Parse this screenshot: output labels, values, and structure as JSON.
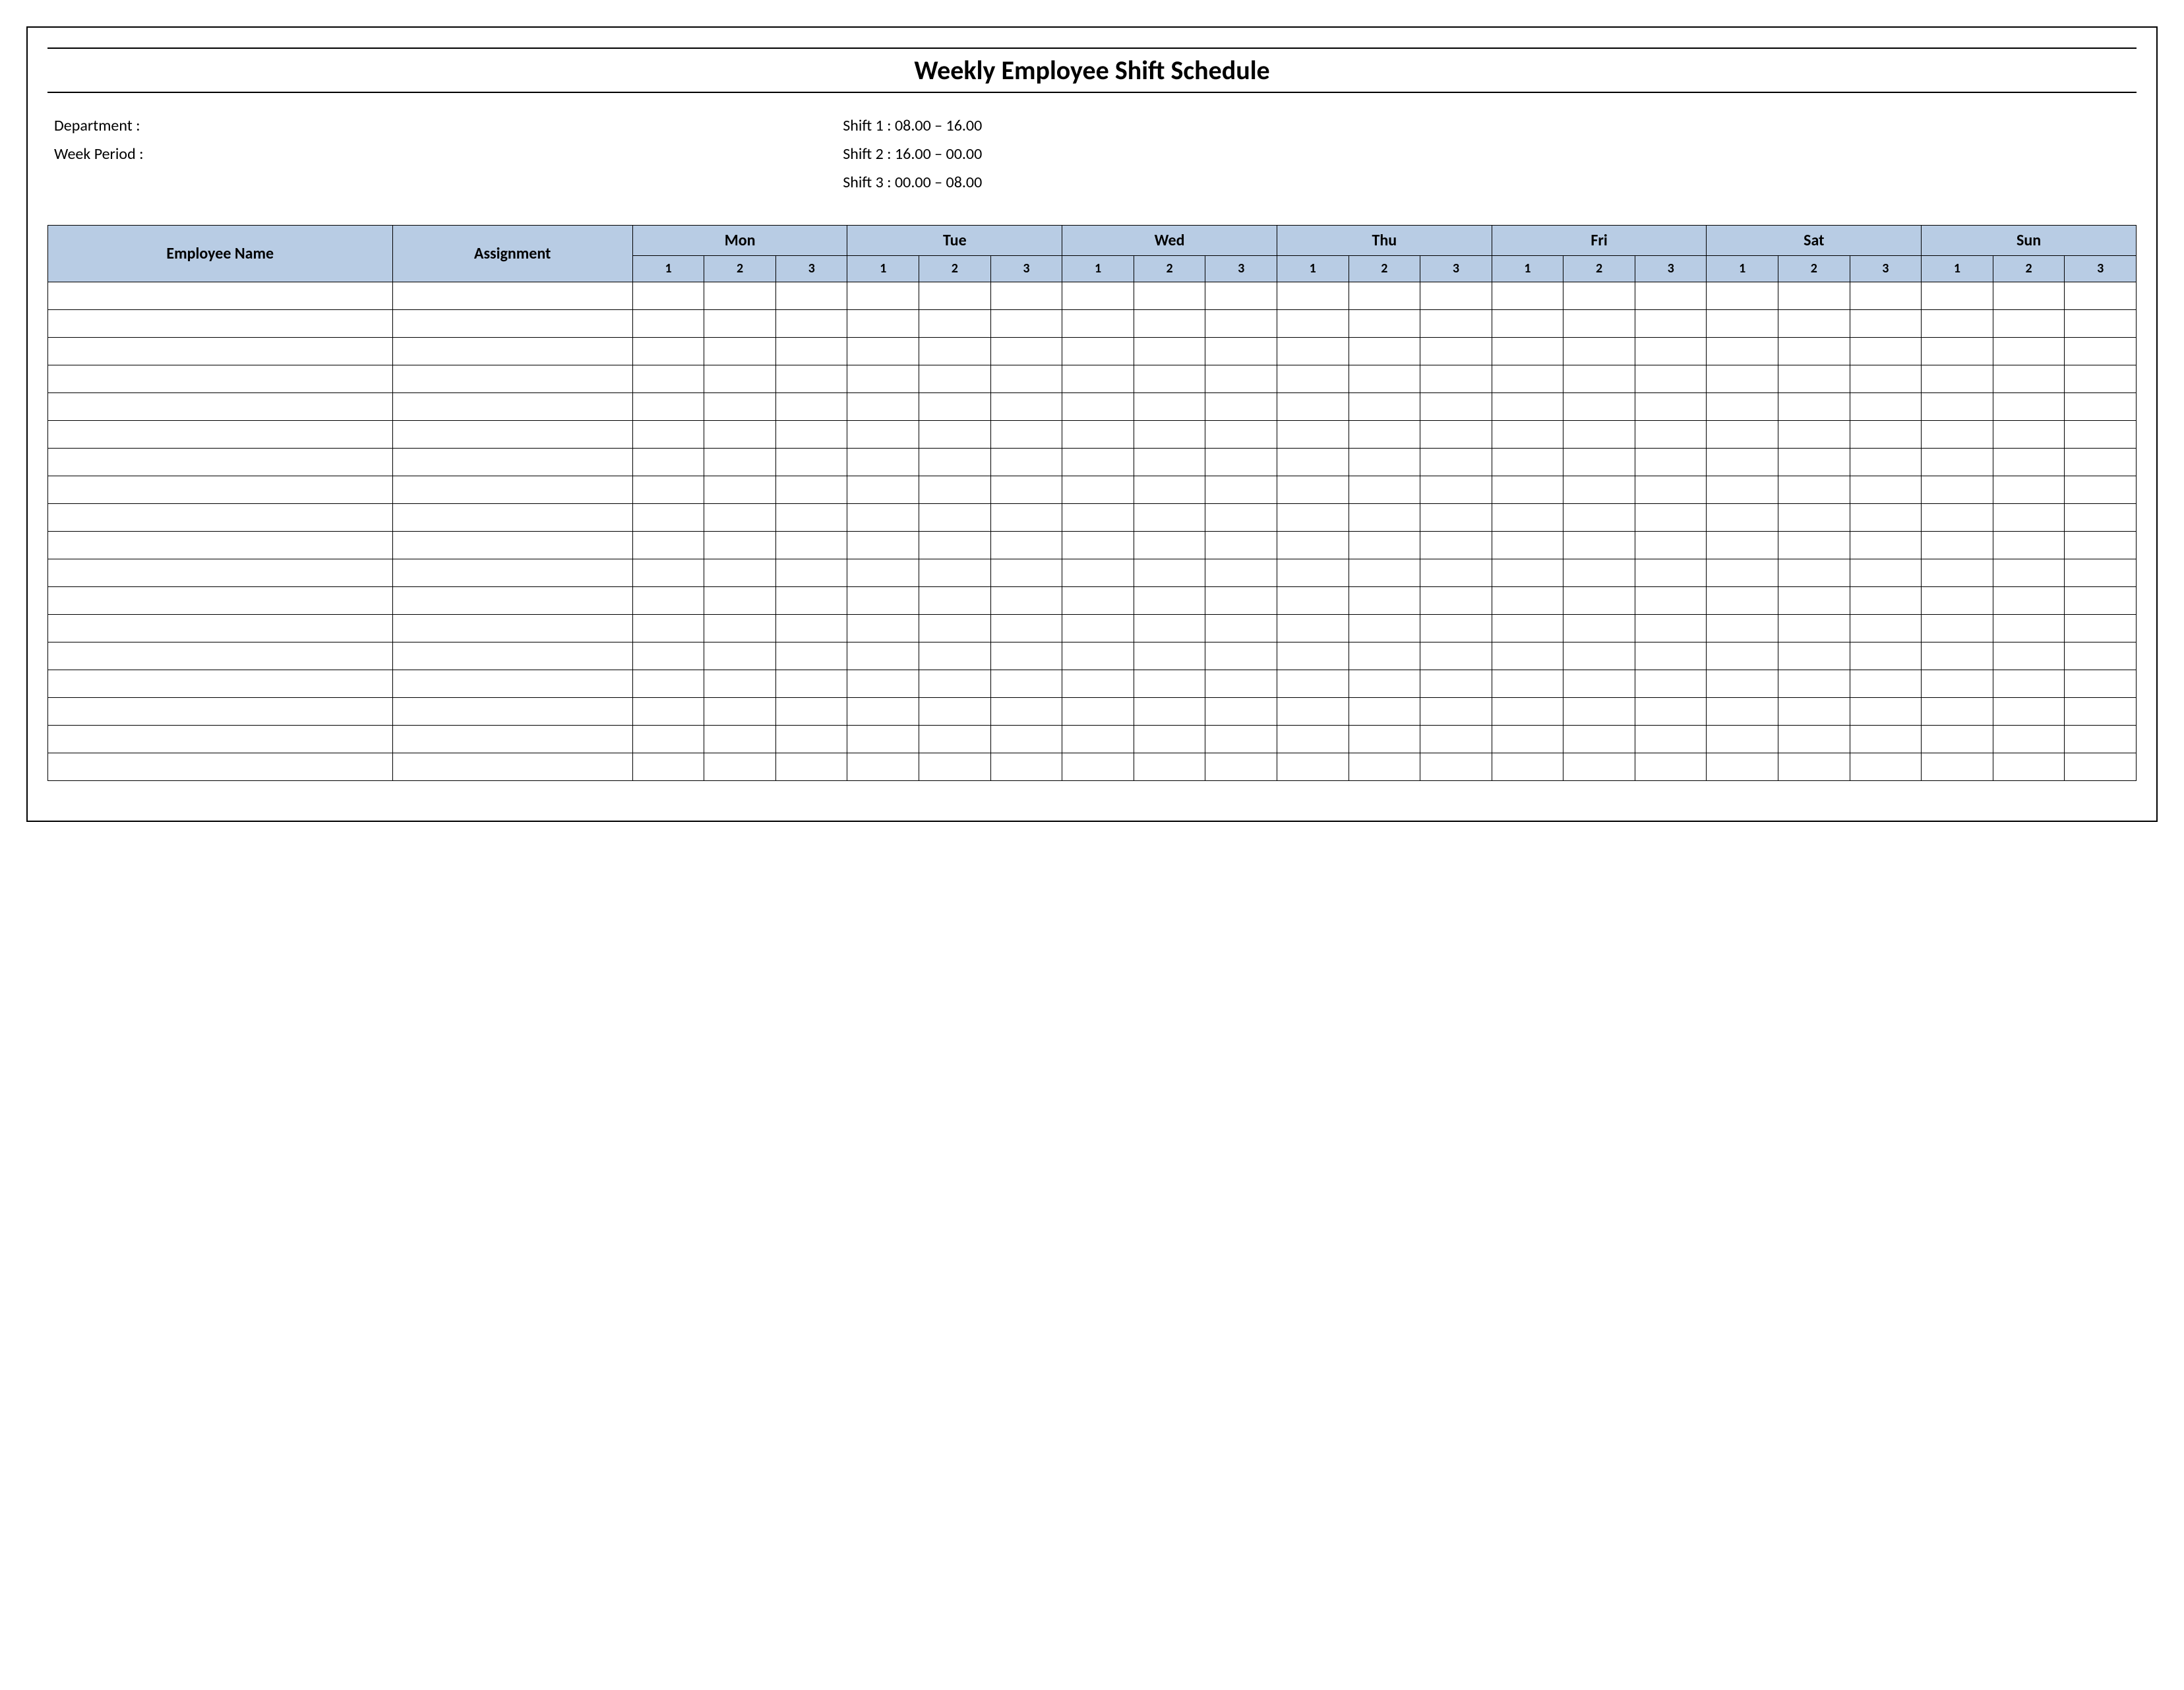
{
  "title": "Weekly Employee Shift Schedule",
  "info_left": {
    "department_label": "Department    :",
    "week_period_label": "Week  Period :"
  },
  "info_right": {
    "shift1": "Shift 1  : 08.00  – 16.00",
    "shift2": "Shift 2  : 16.00  – 00.00",
    "shift3": "Shift 3  : 00.00  – 08.00"
  },
  "headers": {
    "employee_name": "Employee Name",
    "assignment": "Assignment",
    "days": [
      "Mon",
      "Tue",
      "Wed",
      "Thu",
      "Fri",
      "Sat",
      "Sun"
    ],
    "shifts": [
      "1",
      "2",
      "3"
    ]
  },
  "body_row_count": 18,
  "colors": {
    "header_bg": "#b8cce4",
    "border": "#000000",
    "page_bg": "#ffffff"
  }
}
